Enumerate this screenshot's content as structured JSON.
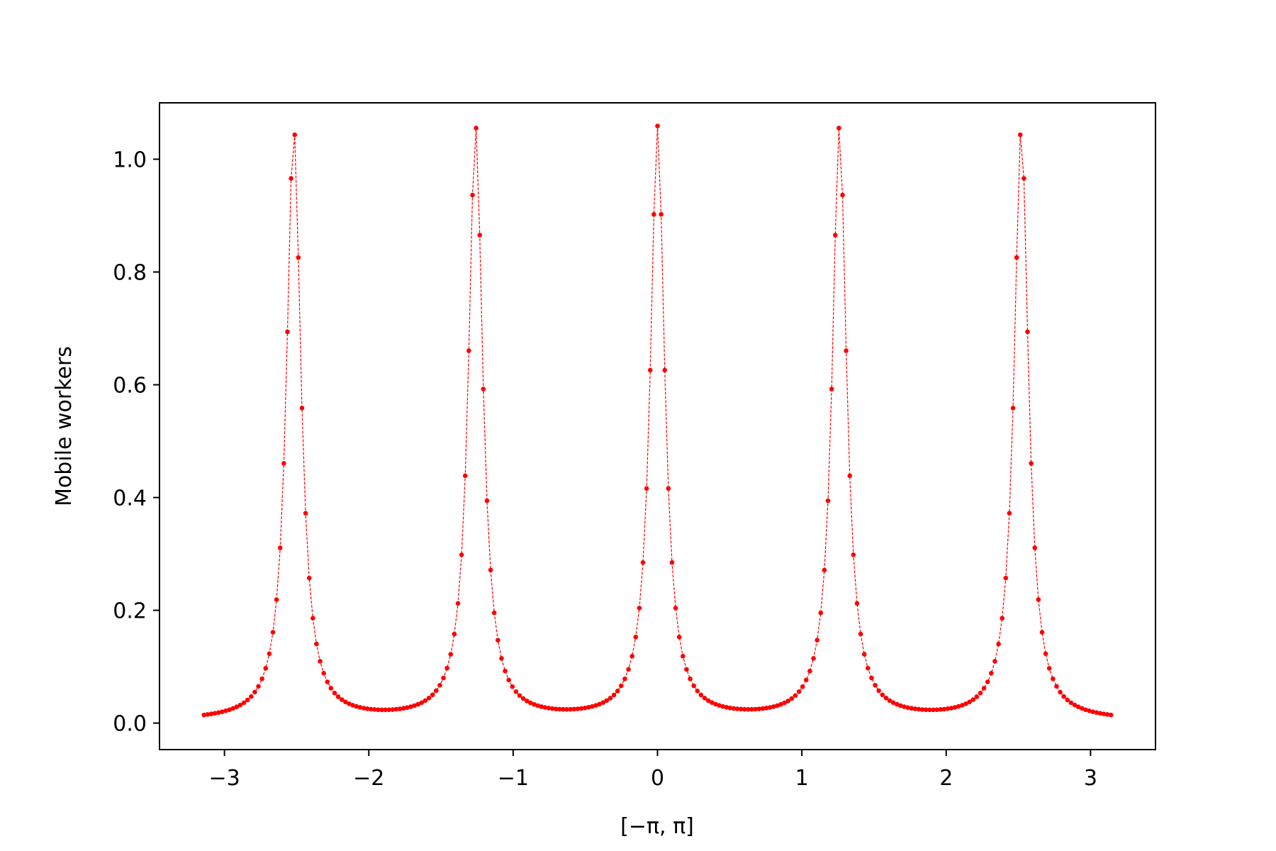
{
  "chart_data": {
    "type": "line",
    "xlabel": "[−π, π]",
    "ylabel": "Mobile workers",
    "xlim": [
      -3.45,
      3.45
    ],
    "ylim": [
      -0.047,
      1.1
    ],
    "x_ticks": [
      {
        "value": -3,
        "label": "−3"
      },
      {
        "value": -2,
        "label": "−2"
      },
      {
        "value": -1,
        "label": "−1"
      },
      {
        "value": 0,
        "label": "0"
      },
      {
        "value": 1,
        "label": "1"
      },
      {
        "value": 2,
        "label": "2"
      },
      {
        "value": 3,
        "label": "3"
      }
    ],
    "y_ticks": [
      {
        "value": 0.0,
        "label": "0.0"
      },
      {
        "value": 0.2,
        "label": "0.2"
      },
      {
        "value": 0.4,
        "label": "0.4"
      },
      {
        "value": 0.6,
        "label": "0.6"
      },
      {
        "value": 0.8,
        "label": "0.8"
      },
      {
        "value": 1.0,
        "label": "1.0"
      }
    ],
    "grid": false,
    "legend": "none",
    "series": [
      {
        "color": "#ff0000",
        "line_style": "dashed",
        "marker": "dot",
        "x_range": [
          -3.1416,
          3.1416
        ],
        "n_points": 251,
        "peak_centers": [
          -2.52,
          -1.26,
          0.0,
          1.26,
          2.52
        ],
        "peak_height": 1.05,
        "peak_half_width": 0.06,
        "baseline": 0.003
      }
    ]
  }
}
